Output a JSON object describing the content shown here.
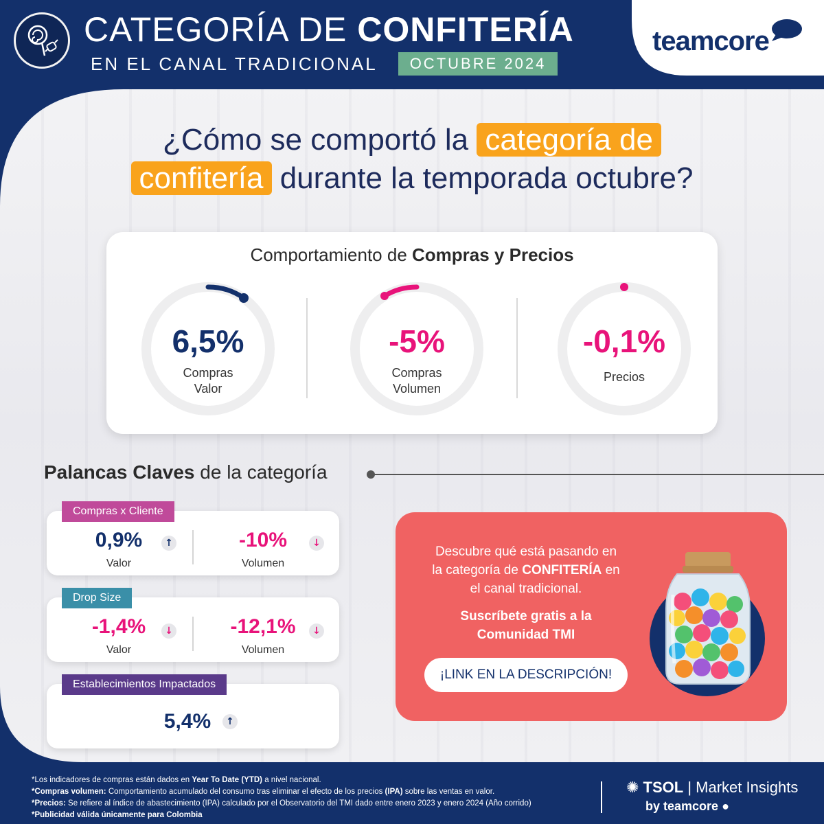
{
  "header": {
    "title_light": "CATEGORÍA DE ",
    "title_bold": "CONFITERÍA",
    "subtitle": "EN EL CANAL TRADICIONAL",
    "month": "OCTUBRE 2024",
    "brand": "teamcore",
    "logo_icon": "candy-lollipop-icon",
    "colors": {
      "navy": "#13306b",
      "green": "#6cae8e",
      "orange": "#f9a31c",
      "pink": "#e8137a",
      "coral": "#f06262"
    }
  },
  "question": {
    "part1": "¿Cómo se comportó la ",
    "highlight1": "categoría de",
    "highlight2": "confitería",
    "part2": " durante la temporada octubre?"
  },
  "purchases": {
    "title_light": "Comportamiento de ",
    "title_bold": "Compras y Precios",
    "gauges": [
      {
        "value": "6,5%",
        "label_line1": "Compras",
        "label_line2": "Valor",
        "color": "#13306b"
      },
      {
        "value": "-5%",
        "label_line1": "Compras",
        "label_line2": "Volumen",
        "color": "#e8137a"
      },
      {
        "value": "-0,1%",
        "label_line1": "Precios",
        "label_line2": "",
        "color": "#e8137a"
      }
    ]
  },
  "levers": {
    "title_bold": "Palancas Claves",
    "title_light": " de la categoría",
    "items": [
      {
        "tag": "Compras x Cliente",
        "tag_color": "#c04a9a",
        "left": {
          "value": "0,9%",
          "label": "Valor",
          "direction": "up",
          "color": "#13306b"
        },
        "right": {
          "value": "-10%",
          "label": "Volumen",
          "direction": "down",
          "color": "#e8137a"
        }
      },
      {
        "tag": "Drop Size",
        "tag_color": "#3a8fa8",
        "left": {
          "value": "-1,4%",
          "label": "Valor",
          "direction": "down",
          "color": "#e8137a"
        },
        "right": {
          "value": "-12,1%",
          "label": "Volumen",
          "direction": "down",
          "color": "#e8137a"
        }
      },
      {
        "tag": "Establecimientos Impactados",
        "tag_color": "#5a3a8a",
        "single": {
          "value": "5,4%",
          "direction": "up",
          "color": "#13306b"
        }
      }
    ],
    "arrow_up": "↑",
    "arrow_down": "↓"
  },
  "promo": {
    "line1": "Descubre qué está pasando en",
    "line2_pre": "la categoría de ",
    "line2_bold": "CONFITERÍA",
    "line2_post": " en",
    "line3": "el canal tradicional.",
    "cta1": "Suscríbete gratis a la",
    "cta2": "Comunidad TMI",
    "button": "¡LINK EN LA DESCRIPCIÓN!",
    "image_icon": "candy-jar-icon"
  },
  "footer": {
    "note1_pre": "*Los indicadores de compras están dados en ",
    "note1_bold": "Year To Date (YTD)",
    "note1_post": " a nivel nacional.",
    "note2_bold": "*Compras volumen:",
    "note2_pre": " Comportamiento acumulado del consumo tras eliminar el efecto de los precios ",
    "note2_bold2": "(IPA)",
    "note2_post": " sobre las ventas en valor.",
    "note3_bold": "*Precios:",
    "note3_post": " Se refiere al índice de abastecimiento (IPA) calculado por el Observatorio del TMI dado entre enero 2023 y enero 2024 (Año corrido)",
    "note4": "*Publicidad válida únicamente para Colombia",
    "brand_bold": "TSOL",
    "brand_sep": " | ",
    "brand_light": "Market Insights",
    "brand_by": "by teamcore"
  }
}
